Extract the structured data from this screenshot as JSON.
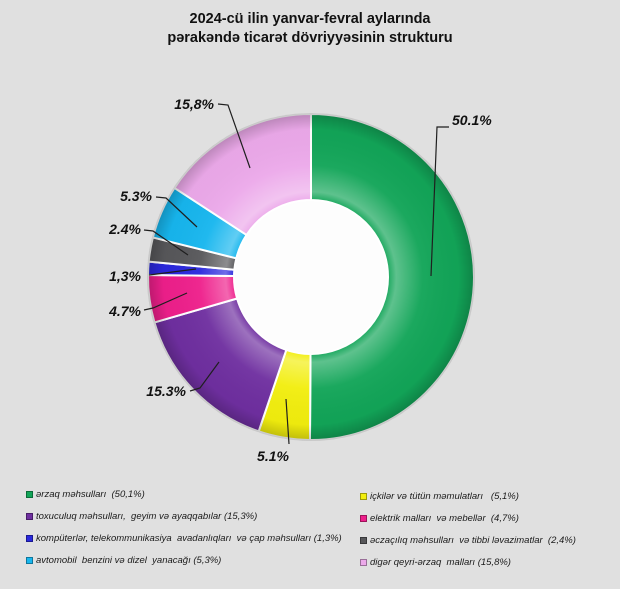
{
  "title": {
    "line1": "2024-cü ilin yanvar-fevral aylarında",
    "line2": "pərakəndə ticarət dövriyyəsinin strukturu"
  },
  "background_color": "#e0e0e0",
  "hole_color": "#fdfdfd",
  "chart_data": {
    "type": "pie",
    "subtype": "donut",
    "title": "2024-cü ilin yanvar-fevral aylarında pərakəndə ticarət dövriyyəsinin strukturu",
    "start_angle_deg": 0,
    "direction": "clockwise",
    "legend_position": "bottom-two-columns",
    "slices": [
      {
        "name": "ərzaq məhsulları",
        "value": 50.1,
        "callout": "50.1%",
        "color": "#12a558",
        "legend": "ərzaq məhsulları  (50,1%)"
      },
      {
        "name": "içkilər və tütün məmulatları",
        "value": 5.1,
        "callout": "5.1%",
        "color": "#f2ee0e",
        "legend": "içkilər və tütün məmulatları   (5,1%)"
      },
      {
        "name": "toxuculuq məhsulları, geyim və ayaqqabılar",
        "value": 15.3,
        "callout": "15.3%",
        "color": "#6f2fa0",
        "legend": "toxuculuq məhsulları,  geyim və ayaqqabılar (15,3%)"
      },
      {
        "name": "elektrik malları və mebellər",
        "value": 4.7,
        "callout": "4.7%",
        "color": "#ee1f8b",
        "legend": "elektrik malları  və mebellər  (4,7%)"
      },
      {
        "name": "kompüterlər, telekommunikasiya avadanlıqları və çap məhsulları",
        "value": 1.3,
        "callout": "1,3%",
        "color": "#2a28dd",
        "legend": "kompüterlər, telekommunikasiya  avadanlıqları  və çap məhsulları (1,3%)"
      },
      {
        "name": "əczaçılıq məhsulları və tibbi ləvazimatlar",
        "value": 2.4,
        "callout": "2.4%",
        "color": "#57575a",
        "legend": "əczaçılıq məhsulları  və tibbi ləvazimatlar  (2,4%)"
      },
      {
        "name": "avtomobil benzini və dizel yanacağı",
        "value": 5.3,
        "callout": "5.3%",
        "color": "#17b6ee",
        "legend": "avtomobil  benzini və dizel  yanacağı (5,3%)"
      },
      {
        "name": "digər qeyri-ərzaq malları",
        "value": 15.8,
        "callout": "15,8%",
        "color": "#eca9ea",
        "legend": "digər qeyri-ərzaq  malları (15,8%)"
      }
    ],
    "legend_left_indices": [
      0,
      2,
      4,
      6
    ],
    "legend_right_indices": [
      1,
      3,
      5,
      7
    ]
  }
}
